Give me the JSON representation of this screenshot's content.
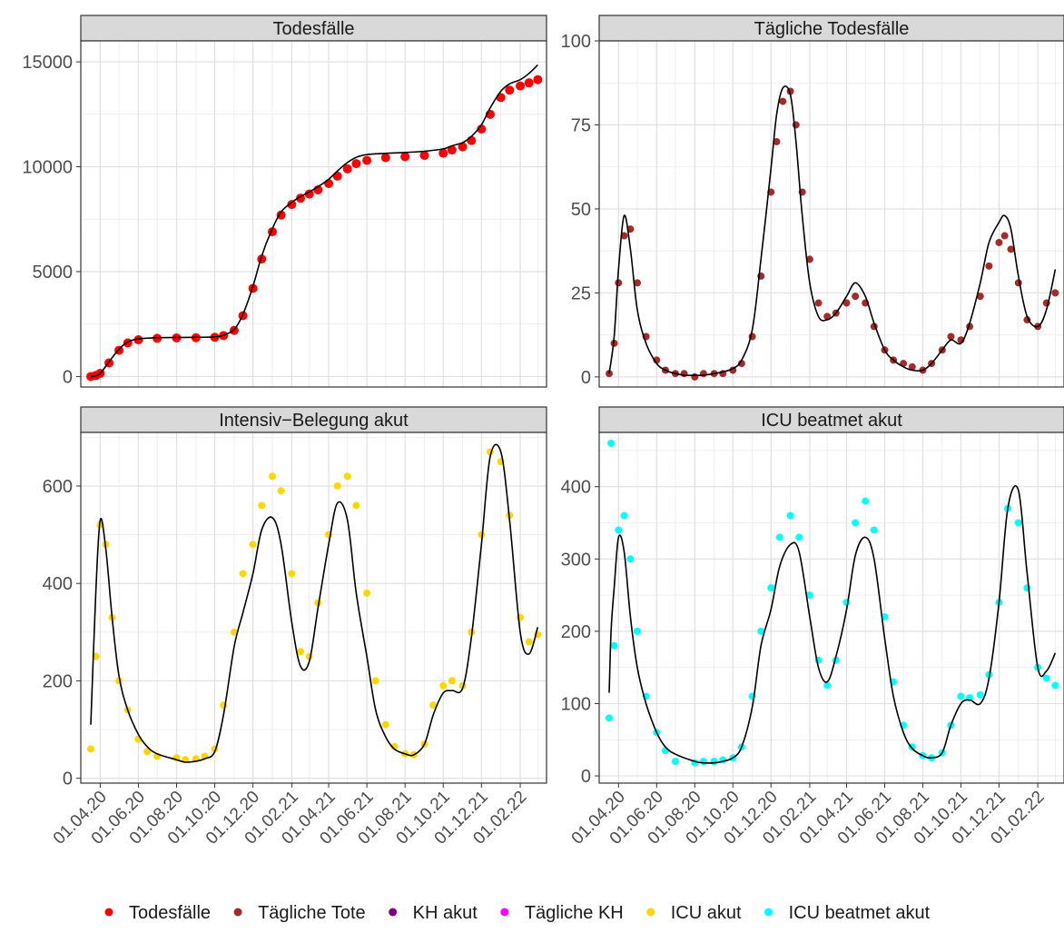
{
  "x_tick_labels": [
    "01.04.20",
    "01.06.20",
    "01.08.20",
    "01.10.20",
    "01.12.20",
    "01.02.21",
    "01.04.21",
    "01.06.21",
    "01.08.21",
    "01.10.21",
    "01.12.21",
    "01.02.22"
  ],
  "legend": [
    {
      "label": "Todesfälle",
      "color": "#ff0000"
    },
    {
      "label": "Tägliche Tote",
      "color": "#a52a2a"
    },
    {
      "label": "KH akut",
      "color": "#800080"
    },
    {
      "label": "Tägliche KH",
      "color": "#ff00ff"
    },
    {
      "label": "ICU akut",
      "color": "#ffd700"
    },
    {
      "label": "ICU beatmet akut",
      "color": "#00ffff"
    }
  ],
  "chart_data": [
    {
      "type": "scatter",
      "title": "Todesfälle",
      "color": "#ff0000",
      "ylim": [
        -500,
        16000
      ],
      "yticks": [
        0,
        5000,
        10000,
        15000
      ],
      "x": [
        "17.03.20",
        "25.03.20",
        "01.04.20",
        "15.04.20",
        "01.05.20",
        "15.05.20",
        "01.06.20",
        "01.07.20",
        "01.08.20",
        "01.09.20",
        "01.10.20",
        "15.10.20",
        "01.11.20",
        "15.11.20",
        "01.12.20",
        "15.12.20",
        "01.01.21",
        "15.01.21",
        "01.02.21",
        "15.02.21",
        "01.03.21",
        "15.03.21",
        "01.04.21",
        "15.04.21",
        "01.05.21",
        "15.05.21",
        "01.06.21",
        "01.07.21",
        "01.08.21",
        "01.09.21",
        "01.10.21",
        "15.10.21",
        "01.11.21",
        "15.11.21",
        "01.12.21",
        "15.12.21",
        "01.01.22",
        "15.01.22",
        "01.02.22",
        "15.02.22",
        "01.03.22"
      ],
      "y": [
        0,
        50,
        150,
        650,
        1250,
        1600,
        1750,
        1820,
        1840,
        1850,
        1870,
        1950,
        2200,
        2900,
        4200,
        5600,
        6900,
        7700,
        8200,
        8500,
        8700,
        8900,
        9200,
        9550,
        9900,
        10150,
        10300,
        10430,
        10480,
        10540,
        10650,
        10800,
        10950,
        11250,
        11800,
        12500,
        13300,
        13650,
        13850,
        14000,
        14150
      ],
      "trend": [
        0,
        40,
        140,
        700,
        1300,
        1650,
        1790,
        1850,
        1860,
        1870,
        1890,
        1970,
        2240,
        2970,
        4300,
        5750,
        7050,
        7850,
        8300,
        8580,
        8800,
        9050,
        9400,
        9800,
        10200,
        10450,
        10580,
        10640,
        10680,
        10740,
        10850,
        11000,
        11150,
        11450,
        12000,
        12800,
        13600,
        13950,
        14150,
        14450,
        14850
      ]
    },
    {
      "type": "scatter",
      "title": "Tägliche Todesfälle",
      "color": "#a52a2a",
      "ylim": [
        -3,
        100
      ],
      "yticks": [
        0,
        25,
        50,
        75,
        100
      ],
      "x": [
        "17.03.20",
        "25.03.20",
        "01.04.20",
        "10.04.20",
        "20.04.20",
        "01.05.20",
        "15.05.20",
        "01.06.20",
        "15.06.20",
        "01.07.20",
        "15.07.20",
        "01.08.20",
        "15.08.20",
        "01.09.20",
        "15.09.20",
        "01.10.20",
        "15.10.20",
        "01.11.20",
        "15.11.20",
        "01.12.20",
        "10.12.20",
        "20.12.20",
        "01.01.21",
        "10.01.21",
        "20.01.21",
        "01.02.21",
        "15.02.21",
        "01.03.21",
        "15.03.21",
        "01.04.21",
        "15.04.21",
        "01.05.21",
        "15.05.21",
        "01.06.21",
        "15.06.21",
        "01.07.21",
        "15.07.21",
        "01.08.21",
        "15.08.21",
        "01.09.21",
        "15.09.21",
        "01.10.21",
        "15.10.21",
        "01.11.21",
        "15.11.21",
        "01.12.21",
        "10.12.21",
        "20.12.21",
        "01.01.22",
        "15.01.22",
        "01.02.22",
        "15.02.22",
        "01.03.22"
      ],
      "y": [
        1,
        10,
        28,
        42,
        44,
        28,
        12,
        5,
        2,
        1,
        1,
        0,
        1,
        1,
        1,
        2,
        4,
        12,
        30,
        55,
        70,
        82,
        85,
        75,
        55,
        35,
        22,
        18,
        19,
        22,
        24,
        22,
        15,
        8,
        5,
        4,
        3,
        2,
        4,
        8,
        12,
        11,
        15,
        24,
        33,
        40,
        42,
        38,
        28,
        17,
        15,
        22,
        25
      ],
      "trend": [
        1,
        12,
        32,
        48,
        38,
        20,
        10,
        4,
        2,
        1,
        0.5,
        0.5,
        0.5,
        1,
        1.5,
        2.5,
        5,
        14,
        35,
        62,
        78,
        86,
        84,
        70,
        48,
        28,
        18,
        17,
        19,
        24,
        28,
        24,
        16,
        8,
        5,
        3,
        2,
        2,
        4,
        8,
        11,
        10,
        16,
        28,
        40,
        46,
        48,
        44,
        30,
        18,
        15,
        20,
        32
      ]
    },
    {
      "type": "scatter",
      "title": "Intensiv−Belegung akut",
      "color": "#ffd700",
      "ylim": [
        -10,
        710
      ],
      "yticks": [
        0,
        200,
        400,
        600
      ],
      "x": [
        "17.03.20",
        "25.03.20",
        "01.04.20",
        "10.04.20",
        "20.04.20",
        "01.05.20",
        "15.05.20",
        "01.06.20",
        "15.06.20",
        "01.07.20",
        "01.08.20",
        "15.08.20",
        "01.09.20",
        "15.09.20",
        "01.10.20",
        "15.10.20",
        "01.11.20",
        "15.11.20",
        "01.12.20",
        "15.12.20",
        "01.01.21",
        "15.01.21",
        "01.02.21",
        "15.02.21",
        "01.03.21",
        "15.03.21",
        "01.04.21",
        "15.04.21",
        "01.05.21",
        "15.05.21",
        "01.06.21",
        "15.06.21",
        "01.07.21",
        "15.07.21",
        "01.08.21",
        "15.08.21",
        "01.09.21",
        "15.09.21",
        "01.10.21",
        "15.10.21",
        "01.11.21",
        "15.11.21",
        "01.12.21",
        "15.12.21",
        "01.01.22",
        "15.01.22",
        "01.02.22",
        "15.02.22",
        "01.03.22"
      ],
      "y": [
        60,
        250,
        520,
        480,
        330,
        200,
        140,
        80,
        55,
        45,
        42,
        38,
        40,
        45,
        60,
        150,
        300,
        420,
        480,
        560,
        620,
        590,
        420,
        260,
        250,
        360,
        500,
        600,
        620,
        560,
        380,
        200,
        110,
        65,
        50,
        48,
        70,
        150,
        190,
        200,
        190,
        300,
        500,
        670,
        650,
        540,
        330,
        280,
        295
      ],
      "trend": [
        110,
        380,
        530,
        470,
        330,
        210,
        140,
        90,
        65,
        50,
        38,
        33,
        35,
        40,
        55,
        130,
        270,
        340,
        420,
        510,
        535,
        480,
        320,
        230,
        240,
        350,
        480,
        565,
        530,
        380,
        250,
        140,
        85,
        60,
        50,
        48,
        70,
        130,
        175,
        180,
        185,
        290,
        480,
        660,
        670,
        530,
        300,
        255,
        310
      ]
    },
    {
      "type": "scatter",
      "title": "ICU beatmet akut",
      "color": "#00ffff",
      "ylim": [
        -10,
        475
      ],
      "yticks": [
        0,
        100,
        200,
        300,
        400
      ],
      "x": [
        "17.03.20",
        "20.03.20",
        "25.03.20",
        "01.04.20",
        "10.04.20",
        "20.04.20",
        "01.05.20",
        "15.05.20",
        "01.06.20",
        "15.06.20",
        "01.07.20",
        "01.08.20",
        "15.08.20",
        "01.09.20",
        "15.09.20",
        "01.10.20",
        "15.10.20",
        "01.11.20",
        "15.11.20",
        "01.12.20",
        "15.12.20",
        "01.01.21",
        "15.01.21",
        "01.02.21",
        "15.02.21",
        "01.03.21",
        "15.03.21",
        "01.04.21",
        "15.04.21",
        "01.05.21",
        "15.05.21",
        "01.06.21",
        "15.06.21",
        "01.07.21",
        "15.07.21",
        "01.08.21",
        "15.08.21",
        "01.09.21",
        "15.09.21",
        "01.10.21",
        "15.10.21",
        "01.11.21",
        "15.11.21",
        "01.12.21",
        "15.12.21",
        "01.01.22",
        "15.01.22",
        "01.02.22",
        "15.02.22",
        "01.03.22"
      ],
      "y": [
        80,
        460,
        180,
        340,
        360,
        300,
        200,
        110,
        60,
        35,
        20,
        18,
        20,
        20,
        22,
        25,
        40,
        110,
        200,
        260,
        330,
        360,
        330,
        250,
        160,
        125,
        160,
        240,
        350,
        380,
        340,
        220,
        130,
        70,
        40,
        28,
        25,
        32,
        70,
        110,
        108,
        112,
        140,
        240,
        370,
        350,
        260,
        150,
        135,
        125
      ],
      "trend": [
        115,
        200,
        260,
        330,
        310,
        220,
        150,
        100,
        60,
        40,
        30,
        20,
        18,
        18,
        20,
        25,
        40,
        95,
        180,
        230,
        290,
        320,
        310,
        220,
        150,
        130,
        165,
        230,
        305,
        330,
        300,
        190,
        110,
        60,
        38,
        28,
        25,
        32,
        70,
        100,
        105,
        100,
        135,
        240,
        370,
        395,
        280,
        150,
        145,
        170
      ]
    }
  ]
}
